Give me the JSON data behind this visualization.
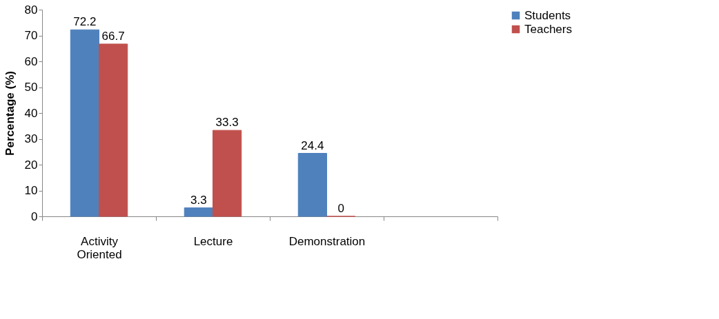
{
  "chart_data": {
    "type": "bar",
    "ylabel": "Percentage (%)",
    "categories": [
      "Activity Oriented",
      "Lecture",
      "Demonstration",
      null
    ],
    "series": [
      {
        "name": "Students",
        "color": "#4f81bd",
        "values": [
          72.2,
          3.3,
          24.4,
          null
        ]
      },
      {
        "name": "Teachers",
        "color": "#c0504d",
        "values": [
          66.7,
          33.3,
          0,
          null
        ]
      }
    ],
    "ylim": [
      0,
      80
    ],
    "yticks": [
      0,
      10,
      20,
      30,
      40,
      50,
      60,
      70,
      80
    ],
    "grid": false,
    "legend": "right",
    "data_labels": true
  }
}
